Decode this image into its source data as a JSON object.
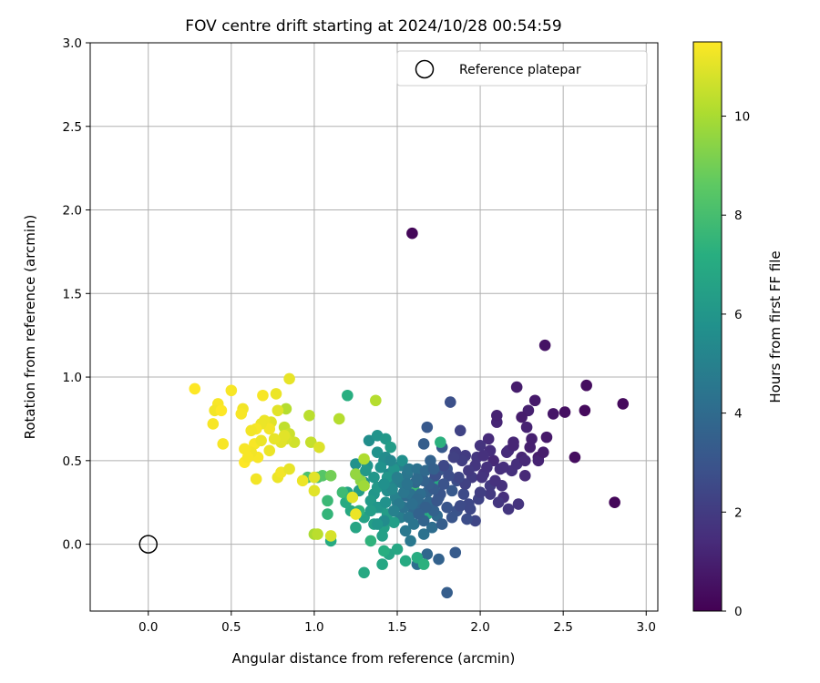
{
  "chart_data": {
    "type": "scatter",
    "title": "FOV centre drift starting at 2024/10/28 00:54:59",
    "xlabel": "Angular distance from reference (arcmin)",
    "ylabel": "Rotation from reference (arcmin)",
    "xlim": [
      -0.35,
      3.07
    ],
    "ylim": [
      -0.4,
      3.0
    ],
    "xticks": [
      "0.0",
      "0.5",
      "1.0",
      "1.5",
      "2.0",
      "2.5",
      "3.0"
    ],
    "xtick_values": [
      0.0,
      0.5,
      1.0,
      1.5,
      2.0,
      2.5,
      3.0
    ],
    "yticks": [
      "0.0",
      "0.5",
      "1.0",
      "1.5",
      "2.0",
      "2.5",
      "3.0"
    ],
    "ytick_values": [
      0.0,
      0.5,
      1.0,
      1.5,
      2.0,
      2.5,
      3.0
    ],
    "grid": true,
    "legend": {
      "position": "top-right",
      "entries": [
        {
          "label": "Reference platepar",
          "marker": "open-circle",
          "x": 0.0,
          "y": 0.0
        }
      ]
    },
    "colorbar": {
      "label": "Hours from first FF file",
      "colormap": "viridis",
      "range": [
        0,
        11.5
      ],
      "ticks": [
        "0",
        "2",
        "4",
        "6",
        "8",
        "10"
      ],
      "tick_values": [
        0,
        2,
        4,
        6,
        8,
        10
      ]
    },
    "points": [
      [
        1.59,
        1.86,
        0.2
      ],
      [
        2.39,
        1.19,
        0.6
      ],
      [
        2.64,
        0.95,
        0.4
      ],
      [
        2.86,
        0.84,
        0.3
      ],
      [
        2.33,
        0.86,
        0.8
      ],
      [
        2.22,
        0.94,
        0.9
      ],
      [
        2.44,
        0.78,
        0.7
      ],
      [
        2.51,
        0.79,
        0.5
      ],
      [
        2.63,
        0.8,
        0.3
      ],
      [
        2.57,
        0.52,
        0.4
      ],
      [
        2.81,
        0.25,
        0.2
      ],
      [
        2.29,
        0.8,
        1.0
      ],
      [
        2.25,
        0.76,
        0.9
      ],
      [
        2.28,
        0.7,
        1.1
      ],
      [
        2.2,
        0.61,
        1.2
      ],
      [
        2.3,
        0.58,
        1.0
      ],
      [
        2.35,
        0.52,
        0.9
      ],
      [
        2.4,
        0.64,
        0.8
      ],
      [
        2.27,
        0.41,
        1.3
      ],
      [
        2.14,
        0.28,
        1.5
      ],
      [
        2.1,
        0.73,
        1.2
      ],
      [
        2.1,
        0.77,
        1.1
      ],
      [
        2.05,
        0.63,
        1.4
      ],
      [
        2.08,
        0.5,
        1.3
      ],
      [
        2.12,
        0.45,
        1.5
      ],
      [
        2.16,
        0.55,
        1.4
      ],
      [
        2.25,
        0.52,
        1.2
      ],
      [
        2.31,
        0.63,
        1.0
      ],
      [
        2.02,
        0.42,
        1.6
      ],
      [
        1.98,
        0.52,
        1.8
      ],
      [
        1.91,
        0.53,
        2.0
      ],
      [
        1.85,
        0.55,
        2.1
      ],
      [
        2.0,
        0.59,
        1.7
      ],
      [
        2.04,
        0.46,
        1.6
      ],
      [
        1.95,
        0.4,
        2.0
      ],
      [
        2.13,
        0.35,
        1.6
      ],
      [
        2.11,
        0.25,
        1.8
      ],
      [
        2.06,
        0.3,
        1.9
      ],
      [
        1.88,
        0.68,
        2.3
      ],
      [
        1.82,
        0.85,
        2.8
      ],
      [
        1.68,
        0.7,
        3.2
      ],
      [
        1.66,
        0.6,
        3.4
      ],
      [
        1.75,
        0.44,
        3.1
      ],
      [
        1.8,
        0.45,
        2.9
      ],
      [
        1.86,
        0.38,
        2.7
      ],
      [
        1.9,
        0.3,
        2.6
      ],
      [
        1.93,
        0.24,
        2.5
      ],
      [
        1.97,
        0.14,
        2.4
      ],
      [
        1.8,
        0.22,
        3.0
      ],
      [
        1.75,
        0.28,
        3.3
      ],
      [
        1.72,
        0.38,
        3.5
      ],
      [
        1.68,
        0.31,
        3.7
      ],
      [
        1.64,
        0.24,
        3.8
      ],
      [
        1.6,
        0.2,
        3.9
      ],
      [
        1.55,
        0.29,
        4.0
      ],
      [
        1.58,
        0.35,
        4.1
      ],
      [
        1.63,
        0.42,
        3.9
      ],
      [
        1.7,
        0.5,
        3.6
      ],
      [
        1.77,
        0.58,
        3.2
      ],
      [
        1.83,
        0.32,
        3.2
      ],
      [
        1.86,
        0.2,
        2.9
      ],
      [
        1.92,
        0.15,
        2.7
      ],
      [
        1.85,
        -0.05,
        3.3
      ],
      [
        1.8,
        -0.29,
        3.4
      ],
      [
        1.75,
        -0.09,
        3.6
      ],
      [
        1.68,
        -0.06,
        3.8
      ],
      [
        1.62,
        -0.12,
        4.2
      ],
      [
        1.66,
        0.06,
        4.3
      ],
      [
        1.71,
        0.1,
        4.1
      ],
      [
        1.74,
        0.17,
        3.9
      ],
      [
        1.6,
        0.12,
        4.4
      ],
      [
        1.55,
        0.08,
        4.6
      ],
      [
        1.52,
        0.16,
        4.8
      ],
      [
        1.58,
        0.02,
        4.6
      ],
      [
        1.5,
        0.25,
        5.0
      ],
      [
        1.47,
        0.35,
        5.2
      ],
      [
        1.52,
        0.47,
        5.0
      ],
      [
        1.45,
        0.42,
        5.4
      ],
      [
        1.42,
        0.5,
        5.6
      ],
      [
        1.38,
        0.55,
        5.8
      ],
      [
        1.32,
        0.47,
        5.9
      ],
      [
        1.25,
        0.48,
        5.8
      ],
      [
        1.25,
        0.42,
        5.6
      ],
      [
        1.3,
        0.37,
        5.8
      ],
      [
        1.36,
        0.3,
        6.0
      ],
      [
        1.4,
        0.22,
        6.2
      ],
      [
        1.44,
        0.18,
        6.3
      ],
      [
        1.48,
        0.13,
        6.4
      ],
      [
        1.42,
        0.1,
        6.5
      ],
      [
        1.36,
        0.12,
        6.4
      ],
      [
        1.3,
        0.16,
        6.6
      ],
      [
        1.25,
        0.1,
        6.7
      ],
      [
        1.22,
        0.2,
        6.9
      ],
      [
        1.19,
        0.25,
        7.0
      ],
      [
        1.2,
        0.31,
        6.6
      ],
      [
        1.27,
        0.32,
        6.3
      ],
      [
        1.34,
        0.26,
        6.2
      ],
      [
        1.38,
        0.34,
        6.1
      ],
      [
        1.44,
        0.4,
        6.0
      ],
      [
        1.48,
        0.45,
        5.9
      ],
      [
        1.53,
        0.5,
        5.7
      ],
      [
        1.33,
        0.62,
        5.6
      ],
      [
        1.38,
        0.65,
        5.9
      ],
      [
        1.43,
        0.63,
        6.1
      ],
      [
        1.46,
        0.58,
        6.3
      ],
      [
        1.41,
        0.05,
        6.5
      ],
      [
        1.45,
        -0.06,
        6.7
      ],
      [
        1.5,
        -0.03,
        6.8
      ],
      [
        1.55,
        -0.1,
        7.0
      ],
      [
        1.62,
        -0.08,
        7.1
      ],
      [
        1.66,
        -0.12,
        7.3
      ],
      [
        1.41,
        -0.12,
        6.8
      ],
      [
        1.3,
        -0.17,
        6.9
      ],
      [
        1.42,
        -0.04,
        7.2
      ],
      [
        1.34,
        0.02,
        7.4
      ],
      [
        1.1,
        0.02,
        7.0
      ],
      [
        1.2,
        0.89,
        7.2
      ],
      [
        1.08,
        0.18,
        7.5
      ],
      [
        1.08,
        0.26,
        7.7
      ],
      [
        1.17,
        0.31,
        7.8
      ],
      [
        1.22,
        0.28,
        7.6
      ],
      [
        1.27,
        0.2,
        7.4
      ],
      [
        1.61,
        0.3,
        7.5
      ],
      [
        1.6,
        0.33,
        7.7
      ],
      [
        1.76,
        0.61,
        7.3
      ],
      [
        1.75,
        0.35,
        7.0
      ],
      [
        1.68,
        0.18,
        7.1
      ],
      [
        0.96,
        0.4,
        8.2
      ],
      [
        1.02,
        0.4,
        8.0
      ],
      [
        1.05,
        0.41,
        8.4
      ],
      [
        1.1,
        0.41,
        9.0
      ],
      [
        1.28,
        0.38,
        9.5
      ],
      [
        1.3,
        0.35,
        9.8
      ],
      [
        1.25,
        0.42,
        9.6
      ],
      [
        1.3,
        0.51,
        10.1
      ],
      [
        1.15,
        0.75,
        10.2
      ],
      [
        1.37,
        0.86,
        10.2
      ],
      [
        0.97,
        0.77,
        10.3
      ],
      [
        0.98,
        0.61,
        10.5
      ],
      [
        1.0,
        0.06,
        10.0
      ],
      [
        1.02,
        0.06,
        10.3
      ],
      [
        1.1,
        0.05,
        10.8
      ],
      [
        1.23,
        0.28,
        11.0
      ],
      [
        1.25,
        0.18,
        11.2
      ],
      [
        1.03,
        0.58,
        10.9
      ],
      [
        1.0,
        0.4,
        11.0
      ],
      [
        0.93,
        0.38,
        11.2
      ],
      [
        1.0,
        0.32,
        11.0
      ],
      [
        0.83,
        0.81,
        10.2
      ],
      [
        0.82,
        0.7,
        10.4
      ],
      [
        0.85,
        0.66,
        10.6
      ],
      [
        0.88,
        0.61,
        10.7
      ],
      [
        0.83,
        0.63,
        10.8
      ],
      [
        0.8,
        0.61,
        11.0
      ],
      [
        0.85,
        0.99,
        11.1
      ],
      [
        0.77,
        0.9,
        11.2
      ],
      [
        0.78,
        0.8,
        11.0
      ],
      [
        0.74,
        0.73,
        11.0
      ],
      [
        0.7,
        0.74,
        11.2
      ],
      [
        0.73,
        0.69,
        11.3
      ],
      [
        0.68,
        0.72,
        11.2
      ],
      [
        0.65,
        0.69,
        11.4
      ],
      [
        0.62,
        0.68,
        11.3
      ],
      [
        0.64,
        0.6,
        11.4
      ],
      [
        0.68,
        0.62,
        11.2
      ],
      [
        0.66,
        0.52,
        11.4
      ],
      [
        0.62,
        0.55,
        11.3
      ],
      [
        0.58,
        0.57,
        11.4
      ],
      [
        0.58,
        0.49,
        11.5
      ],
      [
        0.6,
        0.52,
        11.4
      ],
      [
        0.65,
        0.39,
        11.3
      ],
      [
        0.73,
        0.56,
        11.2
      ],
      [
        0.78,
        0.4,
        11.2
      ],
      [
        0.8,
        0.43,
        11.3
      ],
      [
        0.85,
        0.45,
        11.1
      ],
      [
        0.69,
        0.89,
        11.4
      ],
      [
        0.57,
        0.81,
        11.3
      ],
      [
        0.56,
        0.78,
        11.4
      ],
      [
        0.5,
        0.92,
        11.4
      ],
      [
        0.42,
        0.84,
        11.4
      ],
      [
        0.4,
        0.8,
        11.3
      ],
      [
        0.44,
        0.8,
        11.5
      ],
      [
        0.39,
        0.72,
        11.4
      ],
      [
        0.45,
        0.6,
        11.4
      ],
      [
        0.28,
        0.93,
        11.5
      ],
      [
        0.82,
        0.65,
        11.0
      ],
      [
        0.76,
        0.63,
        11.1
      ],
      [
        1.38,
        0.22,
        6.0
      ],
      [
        1.44,
        0.32,
        5.6
      ],
      [
        1.49,
        0.28,
        5.0
      ],
      [
        1.52,
        0.37,
        4.8
      ],
      [
        1.56,
        0.42,
        4.5
      ],
      [
        1.58,
        0.3,
        4.3
      ],
      [
        1.64,
        0.3,
        4.1
      ],
      [
        1.69,
        0.25,
        3.8
      ],
      [
        1.72,
        0.2,
        3.6
      ],
      [
        1.66,
        0.14,
        3.7
      ],
      [
        1.77,
        0.12,
        3.4
      ],
      [
        1.83,
        0.16,
        3.0
      ],
      [
        1.88,
        0.23,
        2.6
      ],
      [
        1.94,
        0.21,
        2.5
      ],
      [
        1.99,
        0.27,
        2.3
      ],
      [
        2.0,
        0.31,
        2.1
      ],
      [
        2.06,
        0.35,
        1.9
      ],
      [
        2.19,
        0.44,
        1.6
      ],
      [
        2.22,
        0.48,
        1.5
      ],
      [
        2.27,
        0.5,
        1.3
      ],
      [
        2.17,
        0.56,
        1.4
      ],
      [
        2.06,
        0.56,
        1.5
      ],
      [
        2.02,
        0.53,
        1.6
      ],
      [
        1.97,
        0.47,
        1.8
      ],
      [
        1.93,
        0.44,
        1.9
      ],
      [
        1.89,
        0.5,
        2.1
      ],
      [
        1.84,
        0.52,
        2.2
      ],
      [
        1.78,
        0.47,
        2.5
      ],
      [
        1.73,
        0.41,
        2.8
      ],
      [
        1.76,
        0.3,
        3.0
      ],
      [
        1.72,
        0.33,
        3.3
      ],
      [
        1.69,
        0.36,
        3.4
      ],
      [
        1.66,
        0.38,
        3.6
      ],
      [
        1.61,
        0.37,
        3.8
      ],
      [
        1.62,
        0.27,
        4.0
      ],
      [
        1.54,
        0.22,
        4.3
      ],
      [
        1.57,
        0.16,
        4.4
      ],
      [
        1.51,
        0.24,
        4.7
      ],
      [
        1.48,
        0.2,
        5.0
      ],
      [
        1.42,
        0.14,
        5.5
      ],
      [
        1.38,
        0.12,
        6.0
      ],
      [
        1.34,
        0.2,
        6.3
      ],
      [
        1.43,
        0.25,
        5.8
      ],
      [
        1.47,
        0.33,
        5.4
      ],
      [
        1.42,
        0.36,
        5.7
      ],
      [
        1.36,
        0.4,
        6.0
      ],
      [
        1.31,
        0.44,
        6.1
      ],
      [
        1.4,
        0.46,
        5.8
      ],
      [
        1.43,
        0.52,
        5.5
      ],
      [
        1.46,
        0.5,
        5.3
      ],
      [
        2.01,
        0.4,
        1.7
      ],
      [
        2.09,
        0.38,
        1.6
      ],
      [
        2.14,
        0.46,
        1.5
      ],
      [
        2.23,
        0.24,
        1.7
      ],
      [
        2.17,
        0.21,
        1.8
      ],
      [
        2.35,
        0.5,
        1.1
      ],
      [
        2.38,
        0.55,
        0.9
      ],
      [
        2.2,
        0.59,
        1.2
      ],
      [
        1.91,
        0.36,
        2.2
      ],
      [
        1.87,
        0.4,
        2.4
      ],
      [
        1.81,
        0.41,
        2.7
      ],
      [
        1.78,
        0.36,
        2.9
      ],
      [
        1.74,
        0.26,
        3.1
      ],
      [
        1.67,
        0.22,
        3.5
      ],
      [
        1.63,
        0.18,
        3.6
      ],
      [
        1.59,
        0.24,
        4.2
      ],
      [
        1.54,
        0.31,
        4.5
      ],
      [
        1.5,
        0.4,
        4.9
      ],
      [
        1.57,
        0.45,
        4.6
      ],
      [
        1.62,
        0.45,
        4.3
      ],
      [
        1.67,
        0.44,
        3.9
      ],
      [
        1.72,
        0.45,
        3.5
      ],
      [
        1.62,
        0.39,
        4.0
      ],
      [
        1.56,
        0.36,
        4.4
      ]
    ]
  }
}
